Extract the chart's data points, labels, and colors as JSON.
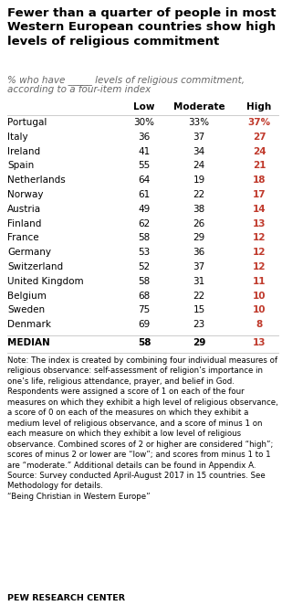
{
  "title": "Fewer than a quarter of people in most\nWestern European countries show high\nlevels of religious commitment",
  "subtitle_line1": "% who have _____ levels of religious commitment,",
  "subtitle_line2": "according to a four-item index",
  "col_headers": [
    "Low",
    "Moderate",
    "High"
  ],
  "countries": [
    "Portugal",
    "Italy",
    "Ireland",
    "Spain",
    "Netherlands",
    "Norway",
    "Austria",
    "Finland",
    "France",
    "Germany",
    "Switzerland",
    "United Kingdom",
    "Belgium",
    "Sweden",
    "Denmark"
  ],
  "low": [
    "30%",
    "36",
    "41",
    "55",
    "64",
    "61",
    "49",
    "62",
    "58",
    "53",
    "52",
    "58",
    "68",
    "75",
    "69"
  ],
  "moderate": [
    "33%",
    "37",
    "34",
    "24",
    "19",
    "22",
    "38",
    "26",
    "29",
    "36",
    "37",
    "31",
    "22",
    "15",
    "23"
  ],
  "high": [
    "37%",
    "27",
    "24",
    "21",
    "18",
    "17",
    "14",
    "13",
    "12",
    "12",
    "12",
    "11",
    "10",
    "10",
    "8"
  ],
  "median_label": "MEDIAN",
  "median_low": "58",
  "median_moderate": "29",
  "median_high": "13",
  "high_color": "#c0392b",
  "note_text": "Note: The index is created by combining four individual measures of religious observance: self-assessment of religion’s importance in one’s life, religious attendance, prayer, and belief in God. Respondents were assigned a score of 1 on each of the four measures on which they exhibit a high level of religious observance, a score of 0 on each of the measures on which they exhibit a medium level of religious observance, and a score of minus 1 on each measure on which they exhibit a low level of religious observance. Combined scores of 2 or higher are considered “high”; scores of minus 2 or lower are “low”; and scores from minus 1 to 1 are “moderate.” Additional details can be found in Appendix A.\nSource: Survey conducted April-August 2017 in 15 countries. See Methodology for details.\n“Being Christian in Western Europe”",
  "source_label": "PEW RESEARCH CENTER",
  "bg_color": "#ffffff",
  "text_color": "#000000",
  "subtitle_color": "#666666",
  "title_fontsize": 9.5,
  "subtitle_fontsize": 7.5,
  "table_fontsize": 7.5,
  "note_fontsize": 6.2,
  "source_fontsize": 6.8,
  "line_color": "#cccccc"
}
